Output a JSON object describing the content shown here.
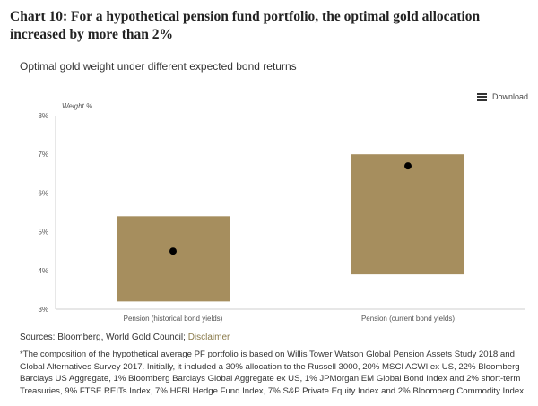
{
  "heading": "Chart 10: For a hypothetical pension fund portfolio, the optimal gold allocation increased by more than 2%",
  "chart_data": {
    "type": "bar",
    "title": "Optimal gold weight under different expected bond returns",
    "ylabel": "Weight %",
    "ylim": [
      3,
      8
    ],
    "yticks": [
      3,
      4,
      5,
      6,
      7,
      8
    ],
    "ytick_labels": [
      "3%",
      "4%",
      "5%",
      "6%",
      "7%",
      "8%"
    ],
    "categories": [
      "Pension (historical bond yields)",
      "Pension (current bond yields)"
    ],
    "ranges": [
      {
        "low": 3.2,
        "high": 5.4,
        "point": 4.5
      },
      {
        "low": 3.9,
        "high": 7.0,
        "point": 6.7
      }
    ],
    "bar_color": "#a68e5e",
    "point_color": "#000000",
    "grid": false
  },
  "toolbar": {
    "download_label": "Download",
    "download_icon": "menu-icon"
  },
  "sources": {
    "label": "Sources: Bloomberg, World Gold Council;",
    "disclaimer": "Disclaimer"
  },
  "footnote": "*The composition of the hypothetical average PF portfolio is based on Willis Tower Watson Global Pension Assets Study 2018 and Global Alternatives Survey 2017. Initially, it included a 30% allocation to the Russell 3000, 20% MSCI ACWI ex US, 22% Bloomberg Barclays US Aggregate, 1% Bloomberg Barclays Global Aggregate ex US, 1% JPMorgan EM Global Bond Index and 2% short-term Treasuries, 9% FTSE REITs Index, 7% HFRI Hedge Fund Index, 7% S&P Private Equity Index and 2% Bloomberg Commodity Index."
}
